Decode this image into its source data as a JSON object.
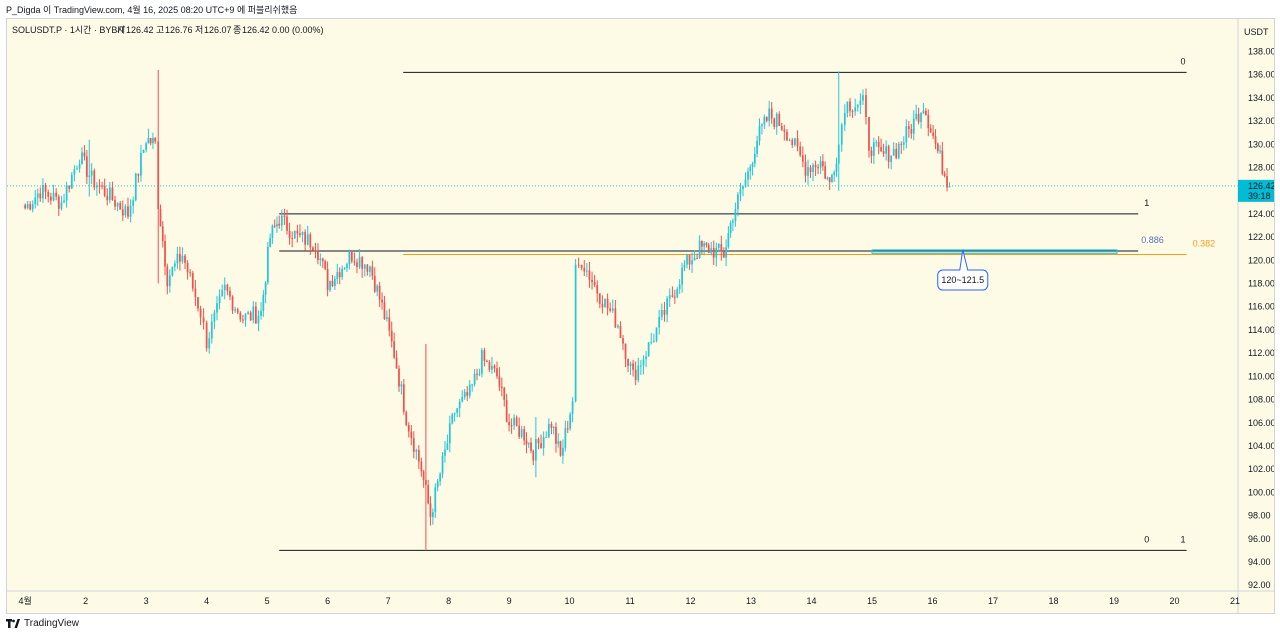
{
  "header": {
    "publisher_line": "P_Digda 이 TradingView.com, 4월 16, 2025 08:20 UTC+9 에 퍼블리쉬했음"
  },
  "legend": {
    "symbol": "SOLUSDT.P · 1시간 · BYBIT",
    "open_label": "시",
    "open": "126.42",
    "high_label": "고",
    "high": "126.76",
    "low_label": "저",
    "low": "126.07",
    "close_label": "종",
    "close": "126.42",
    "change": "0.00 (0.00%)"
  },
  "price_axis": {
    "currency": "USDT",
    "ticks": [
      "92.00",
      "94.00",
      "96.00",
      "98.00",
      "100.00",
      "102.00",
      "104.00",
      "106.00",
      "108.00",
      "110.00",
      "112.00",
      "114.00",
      "116.00",
      "118.00",
      "120.00",
      "122.00",
      "124.00",
      "126.00",
      "128.00",
      "130.00",
      "132.00",
      "134.00",
      "136.00",
      "138.00"
    ],
    "last_price": "126.42",
    "countdown": "39:18"
  },
  "time_axis": {
    "ticks": [
      "4월",
      "2",
      "3",
      "4",
      "5",
      "6",
      "7",
      "8",
      "9",
      "10",
      "11",
      "12",
      "13",
      "14",
      "15",
      "16",
      "17",
      "18",
      "19",
      "20",
      "21"
    ]
  },
  "annotation": {
    "callout_text": "120~121.5"
  },
  "footer": {
    "brand": "TradingView"
  },
  "colors": {
    "up": "#26c6da",
    "down": "#ef5350",
    "background": "#fdfbe6",
    "fib_line": "#131722",
    "fib_orange": "#f59c1a",
    "zone": "#26c6da",
    "last_price_badge": "#00bcd4",
    "callout": "#2962ff"
  },
  "chart_data": {
    "type": "candlestick",
    "title": "SOLUSDT.P · 1시간 · BYBIT",
    "interval": "1시간",
    "ylim": [
      91.5,
      140.8
    ],
    "xlim": [
      0.7,
      21.05
    ],
    "x_unit": "day of April",
    "close_waypoints": [
      [
        1.0,
        124.5
      ],
      [
        1.25,
        126.0
      ],
      [
        1.6,
        125.0
      ],
      [
        1.9,
        129.0
      ],
      [
        2.1,
        127.0
      ],
      [
        2.4,
        125.5
      ],
      [
        2.7,
        124.0
      ],
      [
        3.0,
        130.5
      ],
      [
        3.15,
        130.0
      ],
      [
        3.2,
        125.0
      ],
      [
        3.35,
        118.5
      ],
      [
        3.6,
        120.5
      ],
      [
        3.9,
        115.5
      ],
      [
        4.0,
        113.0
      ],
      [
        4.3,
        117.5
      ],
      [
        4.6,
        115.0
      ],
      [
        4.9,
        115.5
      ],
      [
        5.05,
        122.0
      ],
      [
        5.2,
        123.6
      ],
      [
        5.5,
        122.0
      ],
      [
        5.8,
        121.5
      ],
      [
        6.0,
        118.0
      ],
      [
        6.4,
        120.5
      ],
      [
        6.7,
        119.5
      ],
      [
        6.9,
        116.0
      ],
      [
        7.1,
        112.0
      ],
      [
        7.3,
        106.5
      ],
      [
        7.55,
        102.0
      ],
      [
        7.7,
        98.0
      ],
      [
        7.9,
        102.5
      ],
      [
        8.1,
        107.0
      ],
      [
        8.35,
        108.5
      ],
      [
        8.55,
        111.5
      ],
      [
        8.8,
        110.0
      ],
      [
        9.0,
        106.0
      ],
      [
        9.25,
        105.0
      ],
      [
        9.4,
        103.5
      ],
      [
        9.7,
        106.0
      ],
      [
        9.85,
        103.0
      ],
      [
        10.05,
        108.0
      ],
      [
        10.1,
        119.0
      ],
      [
        10.2,
        120.0
      ],
      [
        10.5,
        117.0
      ],
      [
        10.8,
        114.5
      ],
      [
        11.05,
        110.0
      ],
      [
        11.35,
        113.0
      ],
      [
        11.7,
        117.0
      ],
      [
        11.9,
        119.5
      ],
      [
        12.15,
        121.0
      ],
      [
        12.3,
        121.0
      ],
      [
        12.55,
        120.5
      ],
      [
        12.7,
        124.0
      ],
      [
        12.95,
        127.5
      ],
      [
        13.1,
        130.5
      ],
      [
        13.3,
        132.5
      ],
      [
        13.55,
        131.5
      ],
      [
        13.9,
        128.0
      ],
      [
        14.15,
        128.5
      ],
      [
        14.3,
        126.5
      ],
      [
        14.45,
        130.0
      ],
      [
        14.55,
        133.5
      ],
      [
        14.85,
        133.5
      ],
      [
        14.95,
        130.0
      ],
      [
        15.15,
        129.0
      ],
      [
        15.4,
        129.5
      ],
      [
        15.65,
        131.5
      ],
      [
        15.85,
        133.5
      ],
      [
        16.05,
        130.0
      ],
      [
        16.2,
        127.5
      ],
      [
        16.28,
        126.42
      ]
    ],
    "spikes": [
      {
        "x": 3.2,
        "high": 136.4,
        "low": 118.0
      },
      {
        "x": 7.63,
        "high": 112.8,
        "low": 95.0
      },
      {
        "x": 14.46,
        "high": 136.3,
        "low": 126.0
      },
      {
        "x": 2.05,
        "high": 130.4,
        "low": 125.5
      },
      {
        "x": 9.45,
        "high": 106.5,
        "low": 101.3
      }
    ],
    "horizontal_lines": [
      {
        "price": 136.2,
        "x_from": 7.25,
        "x_to": 20.2,
        "label": "0",
        "label_x": 20.1,
        "color": "#131722"
      },
      {
        "price": 124.0,
        "x_from": 5.2,
        "x_to": 19.4,
        "label": "1",
        "label_x": 19.5,
        "color": "#131722"
      },
      {
        "price": 120.8,
        "x_from": 5.2,
        "x_to": 19.4,
        "label": "0.886",
        "label_x": 19.45,
        "color": "#131722"
      },
      {
        "price": 120.5,
        "x_from": 7.25,
        "x_to": 20.2,
        "label": "0.382",
        "label_x": 20.3,
        "color": "#f59c1a"
      },
      {
        "price": 95.0,
        "x_from": 5.2,
        "x_to": 20.2,
        "label": "0",
        "label_x": 19.5,
        "color": "#131722"
      },
      {
        "price": 95.0,
        "x_from": 20.2,
        "x_to": 20.2,
        "label": "1",
        "label_x": 20.1,
        "color": "#131722"
      }
    ],
    "zone": {
      "price_low": 120.6,
      "price_high": 120.9,
      "x_from": 15.0,
      "x_to": 19.05
    },
    "callout": {
      "text": "120~121.5",
      "x": 16.5,
      "price": 118.3,
      "pointer_price": 120.9
    },
    "last_price": 126.42
  }
}
